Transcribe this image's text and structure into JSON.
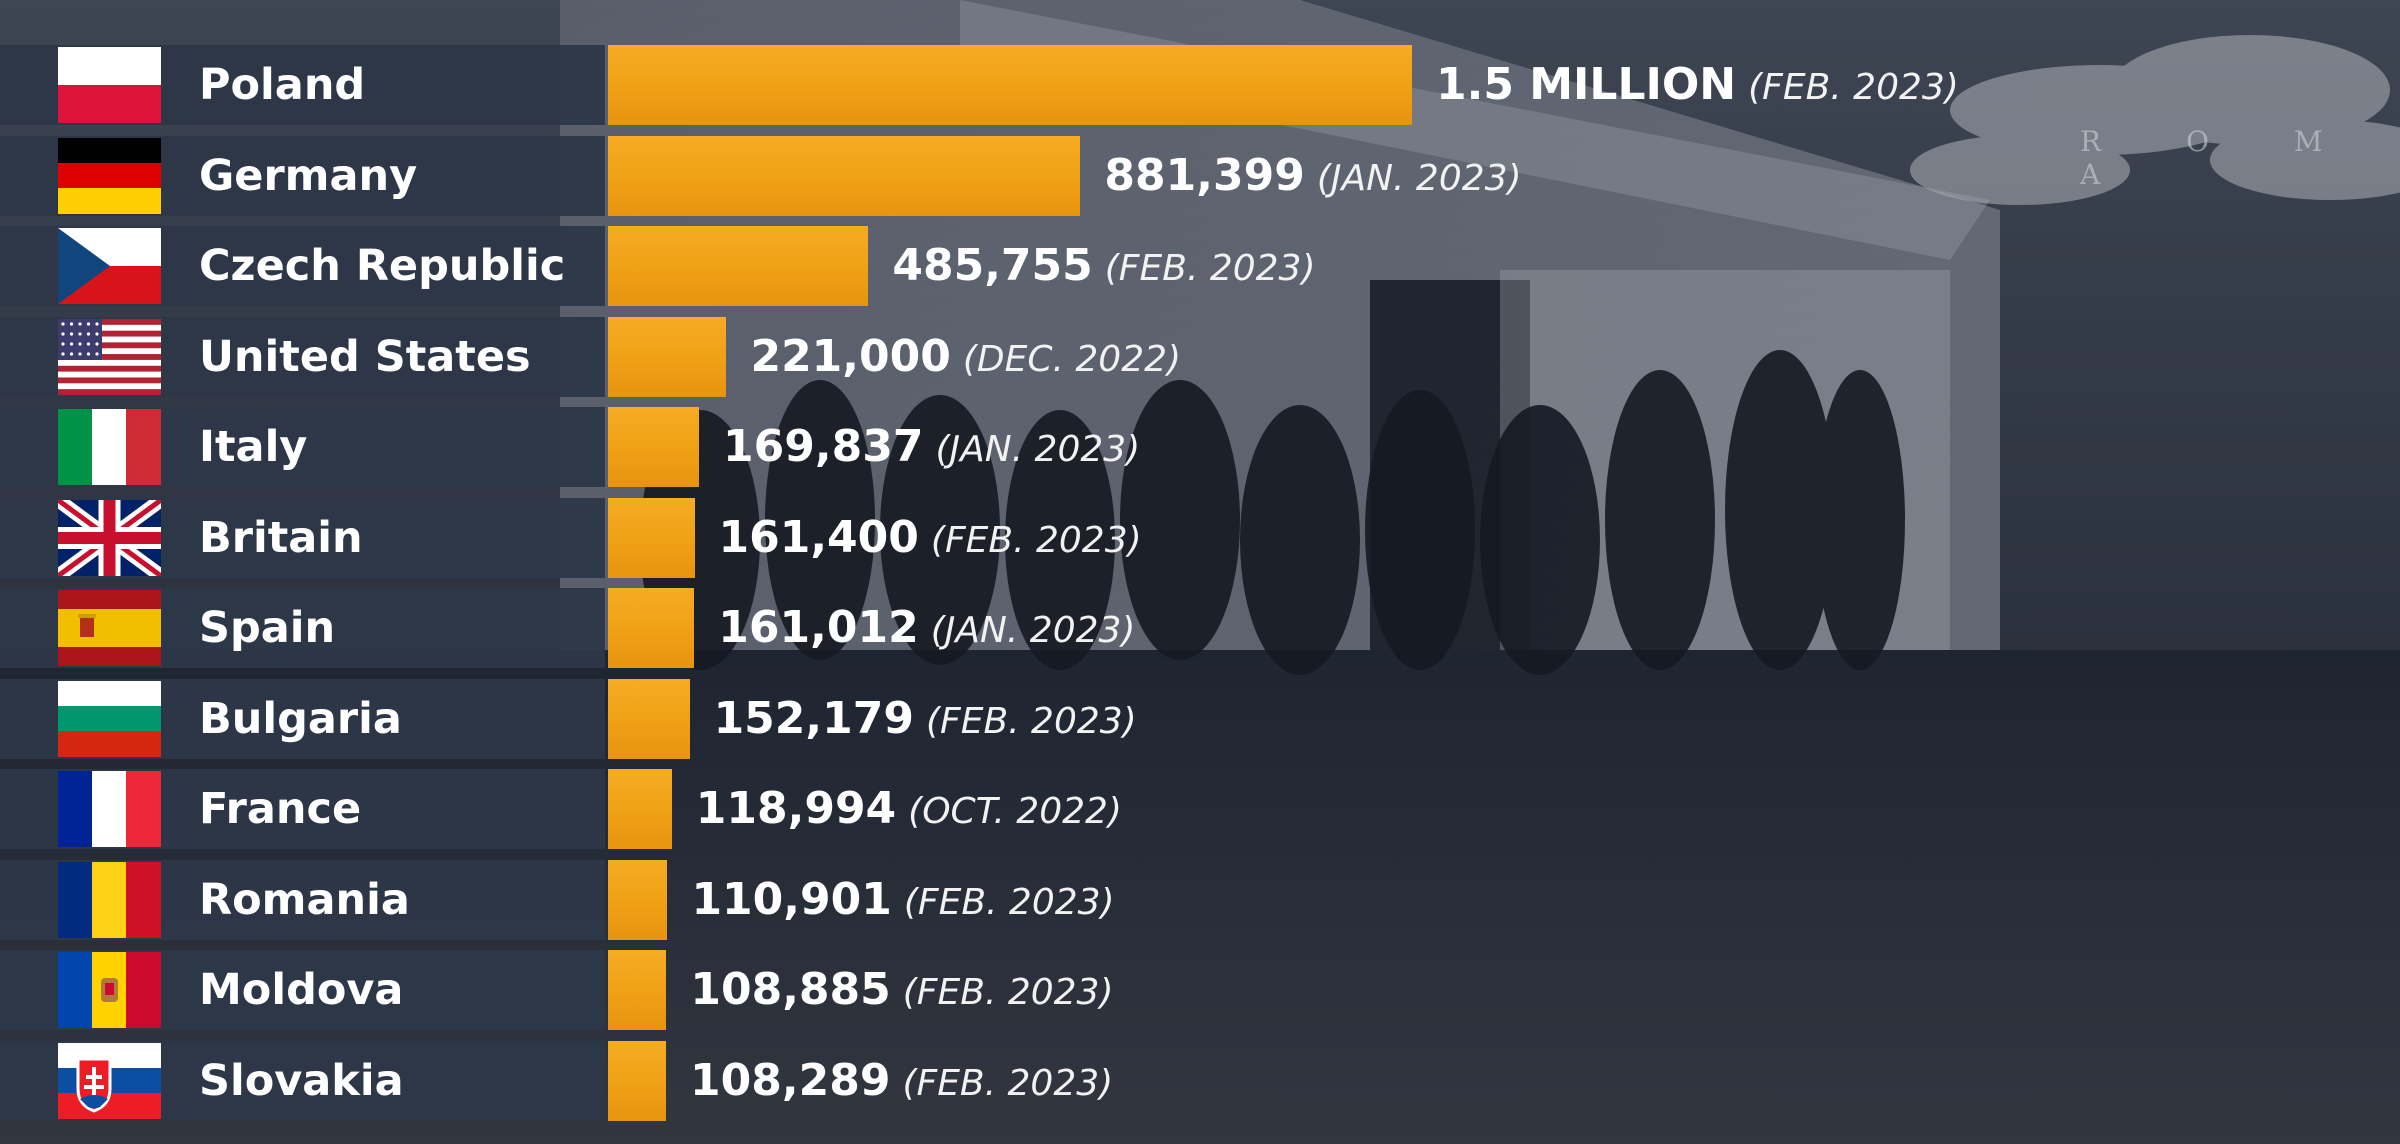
{
  "watermark": "R O M A",
  "chart_data": {
    "type": "bar",
    "orientation": "horizontal",
    "categories": [
      "Poland",
      "Germany",
      "Czech Republic",
      "United States",
      "Italy",
      "Britain",
      "Spain",
      "Bulgaria",
      "France",
      "Romania",
      "Moldova",
      "Slovakia"
    ],
    "values": [
      1500000,
      881399,
      485755,
      221000,
      169837,
      161400,
      161012,
      152179,
      118994,
      110901,
      108885,
      108289
    ],
    "value_labels": [
      "1.5 MILLION",
      "881,399",
      "485,755",
      "221,000",
      "169,837",
      "161,400",
      "161,012",
      "152,179",
      "118,994",
      "110,901",
      "108,885",
      "108,289"
    ],
    "date_labels": [
      "(FEB. 2023)",
      "(JAN. 2023)",
      "(FEB. 2023)",
      "(DEC. 2022)",
      "(JAN. 2023)",
      "(FEB. 2023)",
      "(JAN. 2023)",
      "(FEB. 2023)",
      "(OCT. 2022)",
      "(FEB. 2023)",
      "(FEB. 2023)",
      "(FEB. 2023)"
    ],
    "flag_icons": [
      "poland-flag-icon",
      "germany-flag-icon",
      "czech-flag-icon",
      "usa-flag-icon",
      "italy-flag-icon",
      "britain-flag-icon",
      "spain-flag-icon",
      "bulgaria-flag-icon",
      "france-flag-icon",
      "romania-flag-icon",
      "moldova-flag-icon",
      "slovakia-flag-icon"
    ],
    "bar_color": "#f0a015",
    "label_box_color": "#2d3748",
    "grid": false,
    "legend": "none"
  }
}
